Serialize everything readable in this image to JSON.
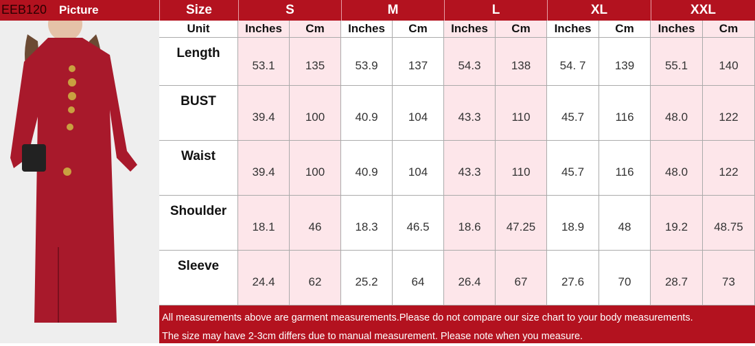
{
  "header": {
    "code": "EEB120",
    "picture_label": "Picture",
    "size_label": "Size",
    "unit_label": "Unit"
  },
  "sizes": [
    "S",
    "M",
    "L",
    "XL",
    "XXL"
  ],
  "units": [
    "Inches",
    "Cm"
  ],
  "rows": [
    {
      "label": "Length",
      "values": [
        "53.1",
        "135",
        "53.9",
        "137",
        "54.3",
        "138",
        "54. 7",
        "139",
        "55.1",
        "140"
      ]
    },
    {
      "label": "BUST",
      "values": [
        "39.4",
        "100",
        "40.9",
        "104",
        "43.3",
        "110",
        "45.7",
        "116",
        "48.0",
        "122"
      ]
    },
    {
      "label": "Waist",
      "values": [
        "39.4",
        "100",
        "40.9",
        "104",
        "43.3",
        "110",
        "45.7",
        "116",
        "48.0",
        "122"
      ]
    },
    {
      "label": "Shoulder",
      "values": [
        "18.1",
        "46",
        "18.3",
        "46.5",
        "18.6",
        "47.25",
        "18.9",
        "48",
        "19.2",
        "48.75"
      ]
    },
    {
      "label": "Sleeve",
      "values": [
        "24.4",
        "62",
        "25.2",
        "64",
        "26.4",
        "67",
        "27.6",
        "70",
        "28.7",
        "73"
      ]
    }
  ],
  "footer": {
    "line1": "All measurements above are garment measurements.Please do not compare our size chart to your body measurements.",
    "line2": "The size may have 2-3cm differs due to manual measurement. Please note when you measure."
  },
  "colors": {
    "header": "#b3121f",
    "pink": "#fde6ea",
    "dress": "#a8192b"
  }
}
